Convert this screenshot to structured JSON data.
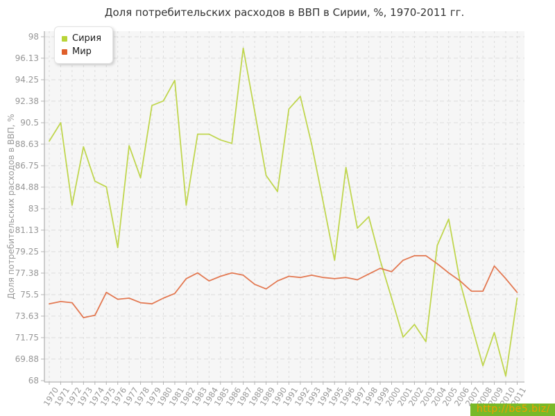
{
  "title": "Доля потребительских расходов в ВВП в Сирии, %, 1970-2011 гг.",
  "y_axis": {
    "label": "Доля потребительских расходов в ВВП, %",
    "ticks": [
      "98",
      "96.13",
      "94.25",
      "92.38",
      "90.5",
      "88.63",
      "86.75",
      "84.88",
      "83",
      "81.13",
      "79.25",
      "77.38",
      "75.5",
      "73.63",
      "71.75",
      "69.88",
      "68"
    ],
    "min": 68,
    "max": 98
  },
  "legend": {
    "items": [
      {
        "label": "Сирия",
        "color": "#b8d438"
      },
      {
        "label": "Мир",
        "color": "#df5f2b"
      }
    ]
  },
  "watermark": {
    "text": "http://be5.biz/",
    "background": "#78b928",
    "color": "#f0a000"
  },
  "colors": {
    "plot_background": "#f6f6f6",
    "grid": "#dcdcdc",
    "axis": "#b3b3b3",
    "tick_text": "#979797",
    "title_text": "#333333",
    "syria_line": "#bdd444",
    "world_line": "#e27148"
  },
  "chart_data": {
    "type": "line",
    "title": "Доля потребительских расходов в ВВП в Сирии, %, 1970-2011 гг.",
    "xlabel": "",
    "ylabel": "Доля потребительских расходов в ВВП, %",
    "ylim": [
      68,
      98
    ],
    "grid": true,
    "legend_position": "top-left",
    "x": [
      1970,
      1971,
      1972,
      1973,
      1974,
      1975,
      1976,
      1977,
      1978,
      1979,
      1980,
      1981,
      1982,
      1983,
      1984,
      1985,
      1986,
      1987,
      1988,
      1989,
      1990,
      1991,
      1992,
      1993,
      1994,
      1995,
      1996,
      1997,
      1998,
      1999,
      2000,
      2001,
      2002,
      2003,
      2004,
      2005,
      2006,
      2007,
      2008,
      2009,
      2010,
      2011
    ],
    "series": [
      {
        "name": "Сирия",
        "color": "#bdd444",
        "values": [
          88.9,
          90.5,
          83.3,
          88.4,
          85.4,
          84.9,
          79.6,
          88.5,
          85.7,
          92.0,
          92.4,
          94.2,
          83.3,
          89.5,
          89.5,
          89.0,
          88.7,
          97.0,
          91.5,
          85.9,
          84.5,
          91.7,
          92.8,
          88.6,
          83.6,
          78.5,
          86.6,
          81.3,
          82.3,
          78.5,
          75.2,
          71.8,
          72.9,
          71.4,
          79.8,
          82.1,
          76.6,
          72.9,
          69.3,
          72.2,
          68.4,
          75.2
        ]
      },
      {
        "name": "Мир",
        "color": "#e27148",
        "values": [
          74.7,
          74.9,
          74.8,
          73.5,
          73.7,
          75.7,
          75.1,
          75.2,
          74.8,
          74.7,
          75.2,
          75.6,
          76.9,
          77.4,
          76.7,
          77.1,
          77.4,
          77.2,
          76.4,
          76.0,
          76.7,
          77.1,
          77.0,
          77.2,
          77.0,
          76.9,
          77.0,
          76.8,
          77.3,
          77.8,
          77.5,
          78.5,
          78.9,
          78.9,
          78.2,
          77.4,
          76.7,
          75.8,
          75.8,
          78.0,
          76.9,
          75.7
        ]
      }
    ]
  }
}
